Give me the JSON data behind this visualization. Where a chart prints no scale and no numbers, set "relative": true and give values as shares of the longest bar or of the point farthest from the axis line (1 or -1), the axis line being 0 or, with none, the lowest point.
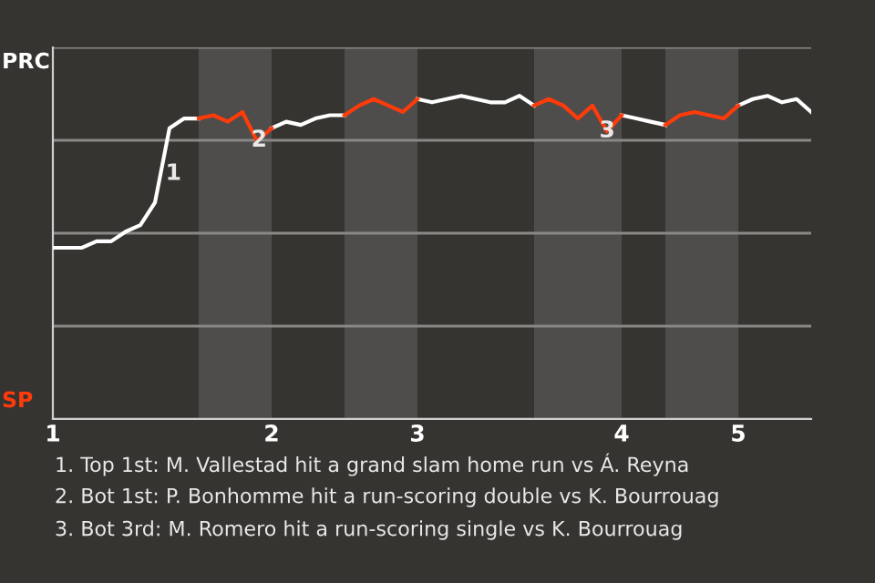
{
  "chart_data": {
    "type": "line",
    "relative": true,
    "categories": [
      "1",
      null,
      null,
      null,
      null,
      null,
      null,
      null,
      null,
      null,
      null,
      null,
      null,
      null,
      null,
      "2",
      null,
      null,
      null,
      null,
      null,
      null,
      null,
      null,
      null,
      "3",
      null,
      null,
      null,
      null,
      null,
      null,
      null,
      null,
      null,
      null,
      null,
      null,
      null,
      "4",
      null,
      null,
      null,
      null,
      null,
      null,
      null,
      "5",
      null,
      null,
      null,
      null,
      null
    ],
    "series": [
      {
        "name": "PRC",
        "color": "#ffffff",
        "values": [
          0.53,
          0.53,
          0.53,
          0.55,
          0.55,
          0.58,
          0.6,
          0.67,
          0.9,
          0.93,
          0.93,
          null,
          null,
          null,
          null,
          0.9,
          0.92,
          0.91,
          0.93,
          0.94,
          0.94,
          null,
          null,
          null,
          null,
          0.99,
          0.98,
          0.99,
          1,
          0.99,
          0.98,
          0.98,
          1,
          0.97,
          null,
          null,
          null,
          null,
          null,
          0.94,
          0.93,
          0.92,
          0.91,
          null,
          null,
          null,
          null,
          0.97,
          0.99,
          1,
          0.98,
          0.99,
          0.95
        ]
      },
      {
        "name": "SP",
        "color": "#ff3b0a",
        "values": [
          null,
          null,
          null,
          null,
          null,
          null,
          null,
          null,
          null,
          null,
          0.93,
          0.94,
          0.92,
          0.95,
          0.86,
          0.9,
          null,
          null,
          null,
          null,
          0.94,
          0.97,
          0.99,
          0.97,
          0.95,
          0.99,
          null,
          null,
          null,
          null,
          null,
          null,
          null,
          0.97,
          0.99,
          0.97,
          0.93,
          0.97,
          0.89,
          0.94,
          null,
          null,
          0.91,
          0.94,
          0.95,
          0.94,
          0.93,
          0.97,
          null,
          null,
          null,
          null,
          null
        ]
      }
    ],
    "grid": "y",
    "annotations": [
      "1",
      "2",
      "3",
      "1. Top 1st: M. Vallestad hit a grand slam home run vs Á. Reyna",
      "2. Bot 1st: P. Bonhomme hit a run-scoring double vs K. Bourrouag",
      "3. Bot 3rd: M. Romero hit a run-scoring single vs K. Bourrouag"
    ]
  }
}
